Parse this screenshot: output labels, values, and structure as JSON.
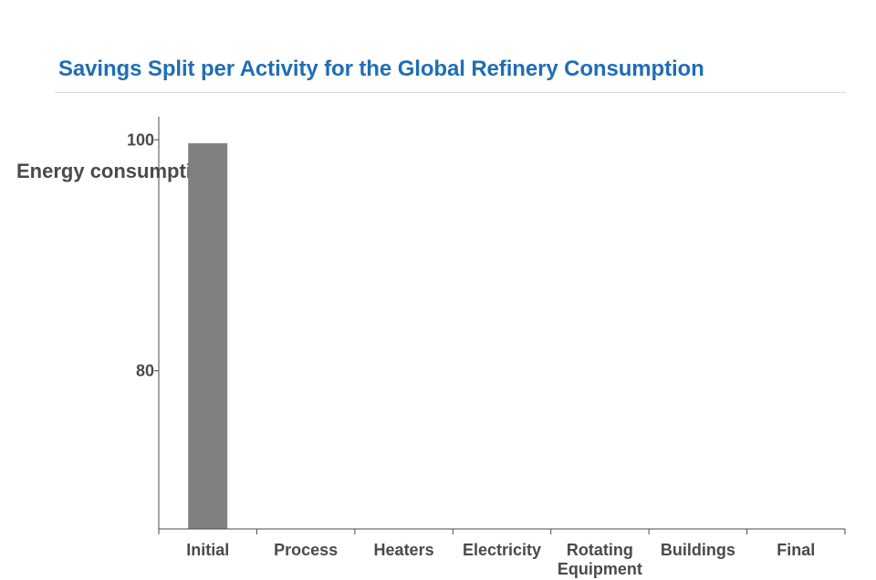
{
  "title": "Savings Split per Activity for the Global Refinery Consumption",
  "chart_data": {
    "type": "bar",
    "title": "Savings Split per Activity for the Global Refinery Consumption",
    "ylabel": "Energy consumption",
    "xlabel": "",
    "categories": [
      "Initial",
      "Process",
      "Heaters",
      "Electricity",
      "Rotating Equipment",
      "Buildings",
      "Final"
    ],
    "category_lines": [
      [
        "Initial"
      ],
      [
        "Process"
      ],
      [
        "Heaters"
      ],
      [
        "Electricity"
      ],
      [
        "Rotating",
        "Equipment"
      ],
      [
        "Buildings"
      ],
      [
        "Final"
      ]
    ],
    "values": [
      99.7,
      null,
      null,
      null,
      null,
      null,
      null
    ],
    "yticks": [
      80,
      100
    ],
    "ylim": [
      66.3,
      102
    ],
    "bar_color": "#808080",
    "axis_color": "#4a4a4a",
    "grid": false,
    "legend": "none"
  }
}
